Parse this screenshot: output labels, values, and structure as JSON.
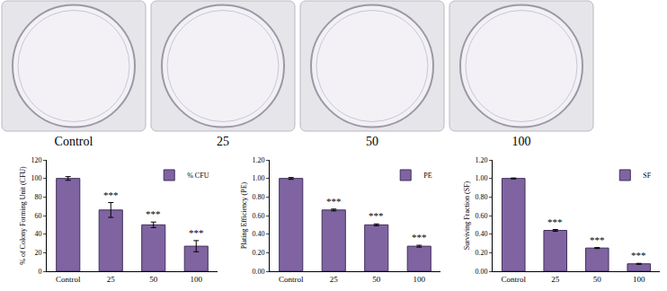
{
  "plates": {
    "labels": [
      "Control",
      "25",
      "50",
      "100"
    ]
  },
  "chart_data": [
    {
      "type": "bar",
      "y_label": "% of Colony Forming Unit (CFU)",
      "categories": [
        "Control",
        "25",
        "50",
        "100"
      ],
      "series": [
        {
          "name": "% CFU",
          "color": "#8064a2",
          "values": [
            100,
            66,
            50,
            27
          ],
          "errors": [
            2,
            8,
            3,
            6
          ]
        }
      ],
      "ylim": [
        0,
        120
      ],
      "yticks": [
        0,
        20,
        40,
        60,
        80,
        100,
        120
      ],
      "legend": "top right",
      "grid": false,
      "annotations": [
        {
          "category": "25",
          "text": "***"
        },
        {
          "category": "50",
          "text": "***"
        },
        {
          "category": "100",
          "text": "***"
        }
      ]
    },
    {
      "type": "bar",
      "y_label": "Plating Efficiency (PE)",
      "categories": [
        "Control",
        "25",
        "50",
        "100"
      ],
      "series": [
        {
          "name": "PE",
          "color": "#8064a2",
          "values": [
            1.0,
            0.66,
            0.5,
            0.27
          ],
          "errors": [
            0.01,
            0.01,
            0.01,
            0.01
          ]
        }
      ],
      "ylim": [
        0,
        1.2
      ],
      "yticks": [
        {
          "value": 0,
          "label": "0.00"
        },
        {
          "value": 0.2,
          "label": "0.20"
        },
        {
          "value": 0.4,
          "label": "0.40"
        },
        {
          "value": 0.6,
          "label": "0.60"
        },
        {
          "value": 0.8,
          "label": "0.80"
        },
        {
          "value": 1.0,
          "label": "1.00"
        },
        {
          "value": 1.2,
          "label": "1.20"
        }
      ],
      "legend": "top right",
      "grid": false,
      "annotations": [
        {
          "category": "25",
          "text": "***"
        },
        {
          "category": "50",
          "text": "***"
        },
        {
          "category": "100",
          "text": "***"
        }
      ]
    },
    {
      "type": "bar",
      "y_label": "Surviving Fraction (SF)",
      "categories": [
        "Control",
        "25",
        "50",
        "100"
      ],
      "series": [
        {
          "name": "SF",
          "color": "#8064a2",
          "values": [
            1.0,
            0.44,
            0.25,
            0.08
          ],
          "errors": [
            0.005,
            0.01,
            0.005,
            0.005
          ]
        }
      ],
      "ylim": [
        0,
        1.2
      ],
      "yticks": [
        {
          "value": 0,
          "label": "0.00"
        },
        {
          "value": 0.2,
          "label": "0.20"
        },
        {
          "value": 0.4,
          "label": "0.40"
        },
        {
          "value": 0.6,
          "label": "0.60"
        },
        {
          "value": 0.8,
          "label": "0.80"
        },
        {
          "value": 1.0,
          "label": "1.00"
        },
        {
          "value": 1.2,
          "label": "1.20"
        }
      ],
      "legend": "top right",
      "grid": false,
      "annotations": [
        {
          "category": "25",
          "text": "***"
        },
        {
          "category": "50",
          "text": "***"
        },
        {
          "category": "100",
          "text": "***"
        }
      ]
    }
  ]
}
